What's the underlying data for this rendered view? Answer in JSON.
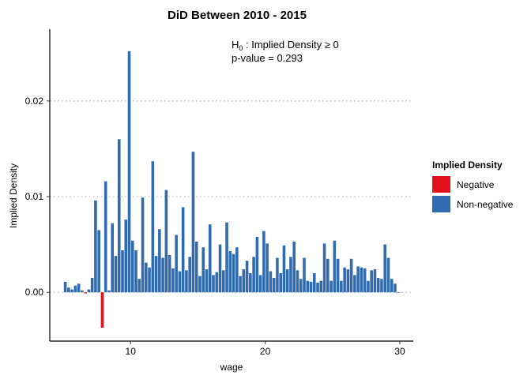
{
  "chart_data": {
    "type": "bar",
    "title": "DiD Between 2010 - 2015",
    "xlabel": "wage",
    "ylabel": "Implied Density",
    "xlim": [
      4.0,
      31.0
    ],
    "ylim": [
      -0.0051,
      0.0275
    ],
    "xticks": [
      10,
      20,
      30
    ],
    "yticks": [
      0.0,
      0.01,
      0.02
    ],
    "ytick_labels": [
      "0.00",
      "0.01",
      "0.02"
    ],
    "grid": "horizontal-dotted",
    "annotation": {
      "hypothesis_prefix": "H",
      "hypothesis_subscript": "0",
      "hypothesis_text": " : Implied Density ≥ 0",
      "pvalue": "p-value = 0.293"
    },
    "legend": {
      "title": "Implied Density",
      "position": "right",
      "items": [
        {
          "label": "Negative",
          "color": "#E3101E"
        },
        {
          "label": "Non-negative",
          "color": "#2F6BAE"
        }
      ]
    },
    "bar_width": 0.21,
    "x": [
      5.15,
      5.4,
      5.65,
      5.9,
      6.15,
      6.4,
      6.65,
      6.9,
      7.15,
      7.4,
      7.65,
      7.9,
      8.15,
      8.4,
      8.65,
      8.9,
      9.15,
      9.4,
      9.65,
      9.9,
      10.15,
      10.4,
      10.65,
      10.9,
      11.15,
      11.4,
      11.65,
      11.9,
      12.15,
      12.4,
      12.65,
      12.9,
      13.15,
      13.4,
      13.65,
      13.9,
      14.15,
      14.4,
      14.65,
      14.9,
      15.15,
      15.4,
      15.65,
      15.9,
      16.15,
      16.4,
      16.65,
      16.9,
      17.15,
      17.4,
      17.65,
      17.9,
      18.15,
      18.4,
      18.65,
      18.9,
      19.15,
      19.4,
      19.65,
      19.9,
      20.15,
      20.4,
      20.65,
      20.9,
      21.15,
      21.4,
      21.65,
      21.9,
      22.15,
      22.4,
      22.65,
      22.9,
      23.15,
      23.4,
      23.65,
      23.9,
      24.15,
      24.4,
      24.65,
      24.9,
      25.15,
      25.4,
      25.65,
      25.9,
      26.15,
      26.4,
      26.65,
      26.9,
      27.15,
      27.4,
      27.65,
      27.9,
      28.15,
      28.4,
      28.65,
      28.9,
      29.15,
      29.4,
      29.65,
      29.9
    ],
    "values": [
      0.0011,
      0.0005,
      0.0003,
      0.0007,
      0.0009,
      0.0002,
      -0.0001,
      0.0003,
      0.0015,
      0.0096,
      0.0065,
      -0.0037,
      0.0116,
      0.0002,
      0.0072,
      0.0038,
      0.016,
      0.0044,
      0.0076,
      0.0252,
      0.0054,
      0.0044,
      0.0014,
      0.0099,
      0.0031,
      0.0026,
      0.0137,
      0.0038,
      0.0066,
      0.0036,
      0.0107,
      0.0039,
      0.0025,
      0.006,
      0.0022,
      0.0089,
      0.0023,
      0.0037,
      0.0147,
      0.0053,
      0.0017,
      0.0047,
      0.0024,
      0.0071,
      0.0018,
      0.0021,
      0.005,
      0.0023,
      0.0073,
      0.0043,
      0.004,
      0.0047,
      0.0017,
      0.0024,
      0.0033,
      0.002,
      0.0037,
      0.0058,
      0.0018,
      0.0064,
      0.0051,
      0.0022,
      0.0015,
      0.0036,
      0.002,
      0.0049,
      0.0024,
      0.0037,
      0.0053,
      0.0023,
      0.0014,
      0.0036,
      0.0012,
      0.0011,
      0.002,
      0.001,
      0.0012,
      0.0051,
      0.0035,
      0.0012,
      0.0054,
      0.0035,
      0.0012,
      0.0026,
      0.0024,
      0.0035,
      0.0018,
      0.0027,
      0.0026,
      0.0025,
      0.0012,
      0.0023,
      0.0024,
      0.0015,
      0.0014,
      0.005,
      0.0036,
      0.0014,
      0.0009,
      0.0
    ]
  }
}
